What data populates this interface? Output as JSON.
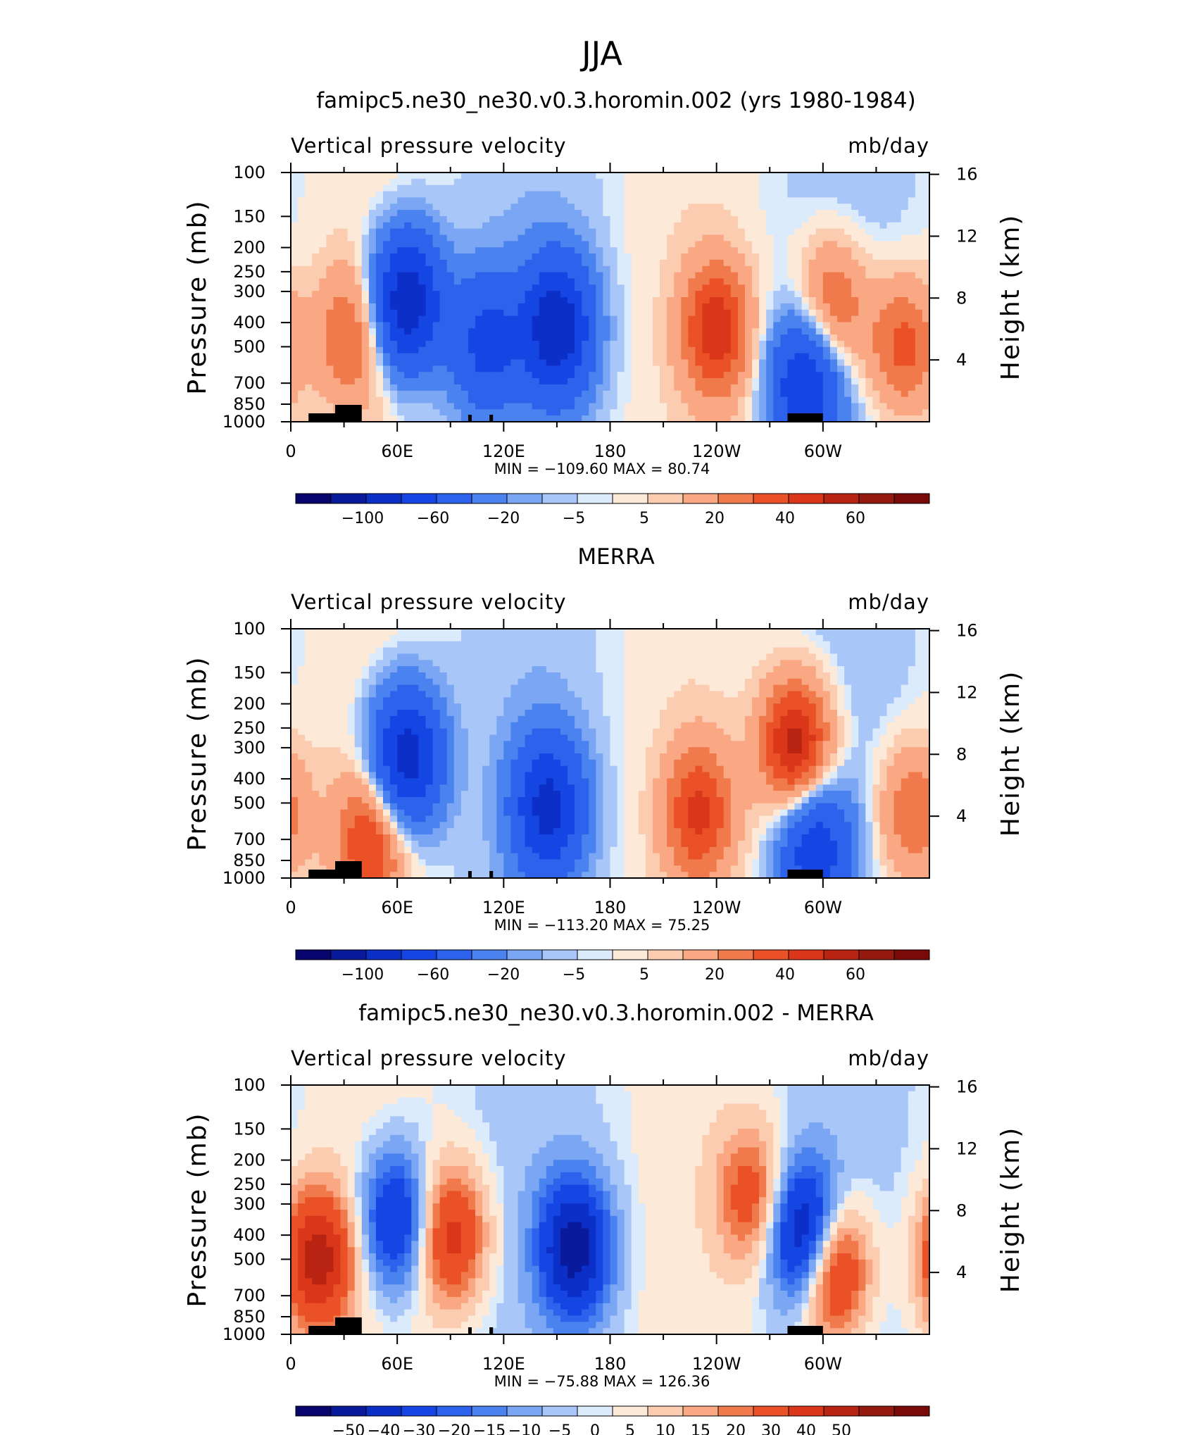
{
  "figure": {
    "supertitle": "JJA",
    "y_axis_label": "Pressure (mb)",
    "y2_axis_label": "Height (km)",
    "variable_label": "Vertical pressure velocity",
    "units_label": "mb/day",
    "colors": {
      "deep_blue": "#08056e",
      "mid_blue": "#1f57e0",
      "light_blue": "#dcebfb",
      "light_peach": "#fde9d8",
      "orange": "#f07a4c",
      "dark_red": "#7a0a0a"
    }
  },
  "chart_data": [
    {
      "type": "heatmap",
      "title": "famipc5.ne30_ne30.v0.3.horomin.002 (yrs 1980-1984)",
      "subtitle_left": "Vertical pressure velocity",
      "subtitle_right": "mb/day",
      "xlabel": "",
      "ylabel": "Pressure (mb)",
      "y2label": "Height (km)",
      "x_ticks": [
        "0",
        "60E",
        "120E",
        "180",
        "120W",
        "60W"
      ],
      "y_ticks": [
        "100",
        "150",
        "200",
        "250",
        "300",
        "400",
        "500",
        "700",
        "850",
        "1000"
      ],
      "y2_ticks": [
        "16",
        "12",
        "8",
        "4"
      ],
      "min_max": "MIN = −109.60   MAX =  80.74",
      "min": -109.6,
      "max": 80.74,
      "colorbar_labels": [
        "−100",
        "−60",
        "−20",
        "−5",
        "5",
        "20",
        "40",
        "60"
      ],
      "features": [
        {
          "lon": 65,
          "p": 330,
          "value": -80
        },
        {
          "lon": 150,
          "p": 420,
          "value": -75
        },
        {
          "lon": 110,
          "p": 480,
          "value": -45
        },
        {
          "lon": 240,
          "p": 430,
          "value": 45
        },
        {
          "lon": 290,
          "p": 700,
          "value": -60
        },
        {
          "lon": 305,
          "p": 350,
          "value": 35
        },
        {
          "lon": 345,
          "p": 500,
          "value": 35
        },
        {
          "lon": 35,
          "p": 450,
          "value": 30
        }
      ]
    },
    {
      "type": "heatmap",
      "title": "MERRA",
      "subtitle_left": "Vertical pressure velocity",
      "subtitle_right": "mb/day",
      "xlabel": "",
      "ylabel": "Pressure (mb)",
      "y2label": "Height (km)",
      "x_ticks": [
        "0",
        "60E",
        "120E",
        "180",
        "120W",
        "60W"
      ],
      "y_ticks": [
        "100",
        "150",
        "200",
        "250",
        "300",
        "400",
        "500",
        "700",
        "850",
        "1000"
      ],
      "y2_ticks": [
        "16",
        "12",
        "8",
        "4"
      ],
      "min_max": "MIN = −113.20   MAX =  75.25",
      "min": -113.2,
      "max": 75.25,
      "colorbar_labels": [
        "−100",
        "−60",
        "−20",
        "−5",
        "5",
        "20",
        "40",
        "60"
      ],
      "features": [
        {
          "lon": 65,
          "p": 330,
          "value": -75
        },
        {
          "lon": 145,
          "p": 520,
          "value": -65
        },
        {
          "lon": 230,
          "p": 550,
          "value": 40
        },
        {
          "lon": 285,
          "p": 300,
          "value": 60
        },
        {
          "lon": 295,
          "p": 750,
          "value": -55
        },
        {
          "lon": 45,
          "p": 700,
          "value": 40
        },
        {
          "lon": 350,
          "p": 550,
          "value": 30
        }
      ]
    },
    {
      "type": "heatmap",
      "title": "famipc5.ne30_ne30.v0.3.horomin.002 - MERRA",
      "subtitle_left": "Vertical pressure velocity",
      "subtitle_right": "mb/day",
      "xlabel": "",
      "ylabel": "Pressure (mb)",
      "y2label": "Height (km)",
      "x_ticks": [
        "0",
        "60E",
        "120E",
        "180",
        "120W",
        "60W"
      ],
      "y_ticks": [
        "100",
        "150",
        "200",
        "250",
        "300",
        "400",
        "500",
        "700",
        "850",
        "1000"
      ],
      "y2_ticks": [
        "16",
        "12",
        "8",
        "4"
      ],
      "min_max": "MIN = −75.88   MAX = 126.36",
      "min": -75.88,
      "max": 126.36,
      "colorbar_labels": [
        "−50",
        "−40",
        "−30",
        "−20",
        "−15",
        "−10",
        "−5",
        "0",
        "5",
        "10",
        "15",
        "20",
        "30",
        "40",
        "50"
      ],
      "features": [
        {
          "lon": 15,
          "p": 500,
          "value": 45
        },
        {
          "lon": 90,
          "p": 400,
          "value": 35
        },
        {
          "lon": 160,
          "p": 450,
          "value": -45
        },
        {
          "lon": 290,
          "p": 400,
          "value": -50
        },
        {
          "lon": 305,
          "p": 550,
          "value": 45
        },
        {
          "lon": 260,
          "p": 280,
          "value": 25
        },
        {
          "lon": 60,
          "p": 350,
          "value": -35
        }
      ]
    }
  ]
}
